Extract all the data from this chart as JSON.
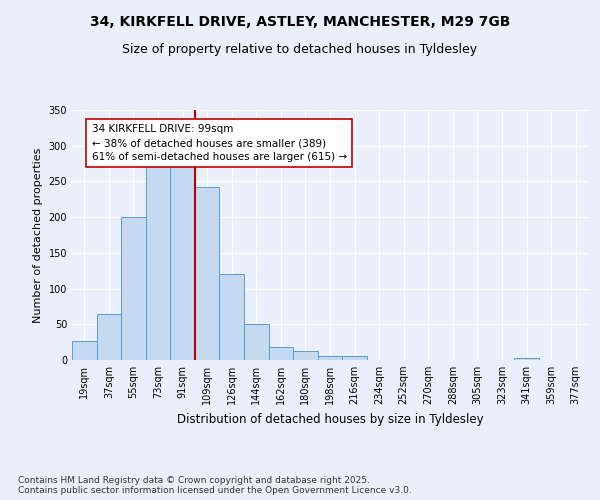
{
  "title_line1": "34, KIRKFELL DRIVE, ASTLEY, MANCHESTER, M29 7GB",
  "title_line2": "Size of property relative to detached houses in Tyldesley",
  "xlabel": "Distribution of detached houses by size in Tyldesley",
  "ylabel": "Number of detached properties",
  "bin_labels": [
    "19sqm",
    "37sqm",
    "55sqm",
    "73sqm",
    "91sqm",
    "109sqm",
    "126sqm",
    "144sqm",
    "162sqm",
    "180sqm",
    "198sqm",
    "216sqm",
    "234sqm",
    "252sqm",
    "270sqm",
    "288sqm",
    "305sqm",
    "323sqm",
    "341sqm",
    "359sqm",
    "377sqm"
  ],
  "bar_values": [
    27,
    65,
    200,
    275,
    275,
    242,
    120,
    50,
    18,
    12,
    5,
    5,
    0,
    0,
    0,
    0,
    0,
    0,
    3,
    0,
    0
  ],
  "bar_color": "#c5d9f1",
  "bar_edge_color": "#5b9bd5",
  "vline_x_index": 4,
  "vline_color": "#c00000",
  "annotation_text": "34 KIRKFELL DRIVE: 99sqm\n← 38% of detached houses are smaller (389)\n61% of semi-detached houses are larger (615) →",
  "annotation_box_color": "#ffffff",
  "annotation_box_edge": "#c00000",
  "ylim": [
    0,
    350
  ],
  "yticks": [
    0,
    50,
    100,
    150,
    200,
    250,
    300,
    350
  ],
  "bg_color": "#eaf0fb",
  "plot_bg_color": "#eaf0fb",
  "footer_text": "Contains HM Land Registry data © Crown copyright and database right 2025.\nContains public sector information licensed under the Open Government Licence v3.0.",
  "title_fontsize": 10,
  "subtitle_fontsize": 9,
  "xlabel_fontsize": 8.5,
  "ylabel_fontsize": 8,
  "tick_fontsize": 7,
  "footer_fontsize": 6.5,
  "annot_fontsize": 7.5
}
